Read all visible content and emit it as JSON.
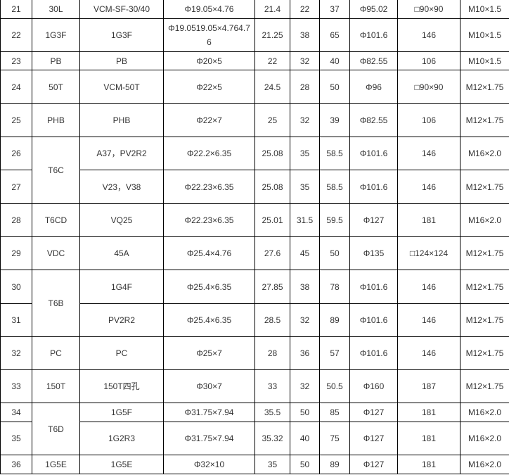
{
  "table": {
    "rows": [
      {
        "no": "21",
        "model": "30L",
        "span": 1,
        "type": "VCM-SF-30/40",
        "shaft": "Φ19.05×4.76",
        "c5": "21.4",
        "c6": "22",
        "c7": "37",
        "c8": "Φ95.02",
        "c9": "□90×90",
        "c10": "M10×1.5"
      },
      {
        "no": "22",
        "model": "1G3F",
        "span": 1,
        "type": "1G3F",
        "shaft": "Φ19.0519.05×4.764.76",
        "c5": "21.25",
        "c6": "38",
        "c7": "65",
        "c8": "Φ101.6",
        "c9": "146",
        "c10": "M10×1.5"
      },
      {
        "no": "23",
        "model": "PB",
        "span": 1,
        "type": "PB",
        "shaft": "Φ20×5",
        "c5": "22",
        "c6": "32",
        "c7": "40",
        "c8": "Φ82.55",
        "c9": "106",
        "c10": "M10×1.5"
      },
      {
        "no": "24",
        "model": "50T",
        "span": 1,
        "type": "VCM-50T",
        "shaft": "Φ22×5",
        "c5": "24.5",
        "c6": "28",
        "c7": "50",
        "c8": "Φ96",
        "c9": "□90×90",
        "c10": "M12×1.75"
      },
      {
        "no": "25",
        "model": "PHB",
        "span": 1,
        "type": "PHB",
        "shaft": "Φ22×7",
        "c5": "25",
        "c6": "32",
        "c7": "39",
        "c8": "Φ82.55",
        "c9": "106",
        "c10": "M12×1.75"
      },
      {
        "no": "26",
        "model": "T6C",
        "span": 2,
        "type": "A37，PV2R2",
        "shaft": "Φ22.2×6.35",
        "c5": "25.08",
        "c6": "35",
        "c7": "58.5",
        "c8": "Φ101.6",
        "c9": "146",
        "c10": "M16×2.0"
      },
      {
        "no": "27",
        "model": null,
        "span": 0,
        "type": "V23，V38",
        "shaft": "Φ22.23×6.35",
        "c5": "25.08",
        "c6": "35",
        "c7": "58.5",
        "c8": "Φ101.6",
        "c9": "146",
        "c10": "M12×1.75"
      },
      {
        "no": "28",
        "model": "T6CD",
        "span": 1,
        "type": "VQ25",
        "shaft": "Φ22.23×6.35",
        "c5": "25.01",
        "c6": "31.5",
        "c7": "59.5",
        "c8": "Φ127",
        "c9": "181",
        "c10": "M16×2.0"
      },
      {
        "no": "29",
        "model": "VDC",
        "span": 1,
        "type": "45A",
        "shaft": "Φ25.4×4.76",
        "c5": "27.6",
        "c6": "45",
        "c7": "50",
        "c8": "Φ135",
        "c9": "□124×124",
        "c10": "M12×1.75"
      },
      {
        "no": "30",
        "model": "T6B",
        "span": 2,
        "type": "1G4F",
        "shaft": "Φ25.4×6.35",
        "c5": "27.85",
        "c6": "38",
        "c7": "78",
        "c8": "Φ101.6",
        "c9": "146",
        "c10": "M12×1.75"
      },
      {
        "no": "31",
        "model": null,
        "span": 0,
        "type": "PV2R2",
        "shaft": "Φ25.4×6.35",
        "c5": "28.5",
        "c6": "32",
        "c7": "89",
        "c8": "Φ101.6",
        "c9": "146",
        "c10": "M12×1.75"
      },
      {
        "no": "32",
        "model": "PC",
        "span": 1,
        "type": "PC",
        "shaft": "Φ25×7",
        "c5": "28",
        "c6": "36",
        "c7": "57",
        "c8": "Φ101.6",
        "c9": "146",
        "c10": "M12×1.75"
      },
      {
        "no": "33",
        "model": "150T",
        "span": 1,
        "type": "150T四孔",
        "shaft": "Φ30×7",
        "c5": "33",
        "c6": "32",
        "c7": "50.5",
        "c8": "Φ160",
        "c9": "187",
        "c10": "M12×1.75"
      },
      {
        "no": "34",
        "model": "T6D",
        "span": 2,
        "type": "1G5F",
        "shaft": "Φ31.75×7.94",
        "c5": "35.5",
        "c6": "50",
        "c7": "85",
        "c8": "Φ127",
        "c9": "181",
        "c10": "M16×2.0"
      },
      {
        "no": "35",
        "model": null,
        "span": 0,
        "type": "1G2R3",
        "shaft": "Φ31.75×7.94",
        "c5": "35.32",
        "c6": "40",
        "c7": "75",
        "c8": "Φ127",
        "c9": "181",
        "c10": "M16×2.0"
      },
      {
        "no": "36",
        "model": "1G5E",
        "span": 1,
        "type": "1G5E",
        "shaft": "Φ32×10",
        "c5": "35",
        "c6": "50",
        "c7": "89",
        "c8": "Φ127",
        "c9": "181",
        "c10": "M16×2.0"
      }
    ]
  }
}
